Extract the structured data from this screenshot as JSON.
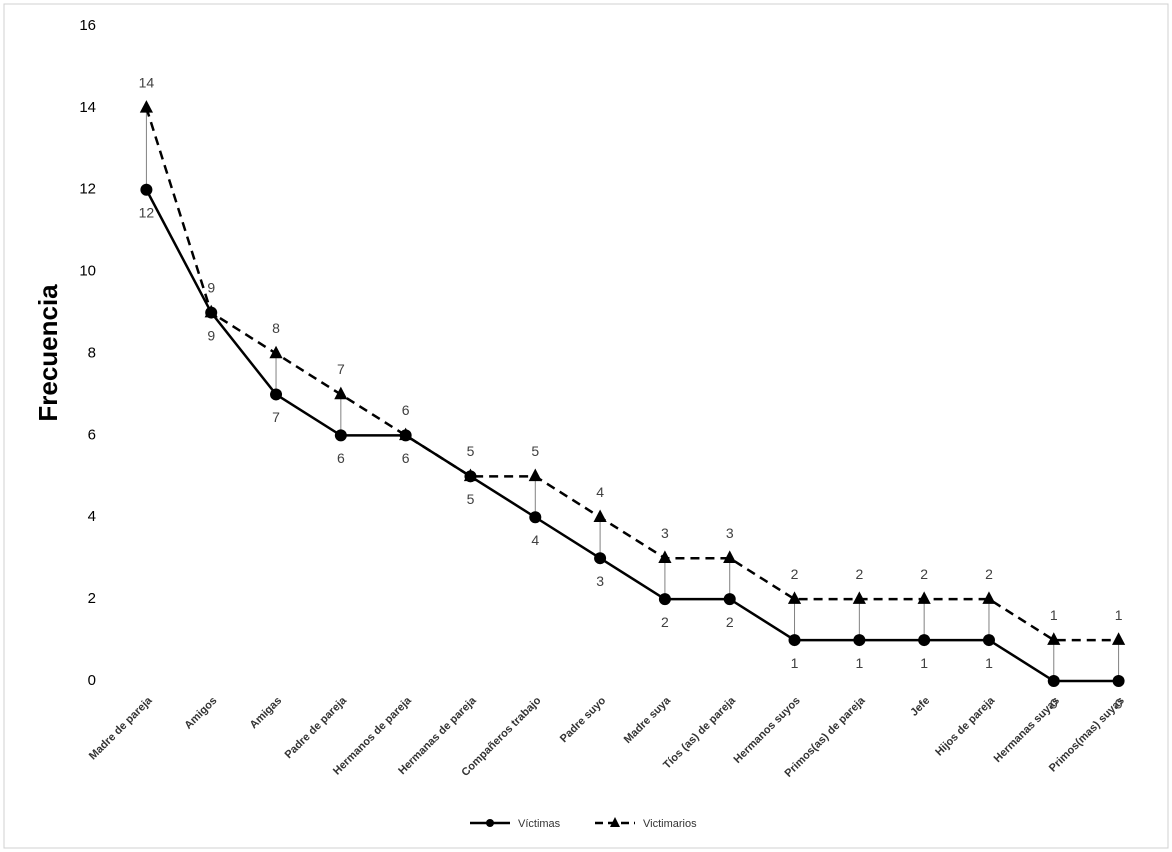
{
  "chart_data": {
    "type": "line",
    "y_label": "Frecuencia",
    "categories": [
      "Madre de pareja",
      "Amigos",
      "Amigas",
      "Padre de pareja",
      "Hermanos de pareja",
      "Hermanas de pareja",
      "Compañeros trabajo",
      "Padre suyo",
      "Madre suya",
      "Tíos (as) de pareja",
      "Hermanos suyos",
      "Primos(as) de pareja",
      "Jefe",
      "Hijos de pareja",
      "Hermanas suyas",
      "Primos(mas) suyas"
    ],
    "series": [
      {
        "name": "Víctimas",
        "color": "#000000",
        "dash": false,
        "marker": "circle",
        "values": [
          12,
          9,
          7,
          6,
          6,
          5,
          4,
          3,
          2,
          2,
          1,
          1,
          1,
          1,
          0,
          0
        ]
      },
      {
        "name": "Victimarios",
        "color": "#000000",
        "dash": true,
        "marker": "triangle",
        "values": [
          14,
          9,
          8,
          7,
          6,
          5,
          5,
          4,
          3,
          3,
          2,
          2,
          2,
          2,
          1,
          1
        ]
      }
    ],
    "ylim": [
      0,
      16
    ],
    "yticks": [
      0,
      2,
      4,
      6,
      8,
      10,
      12,
      14,
      16
    ],
    "high_low_lines": true,
    "legend": "bottom"
  }
}
